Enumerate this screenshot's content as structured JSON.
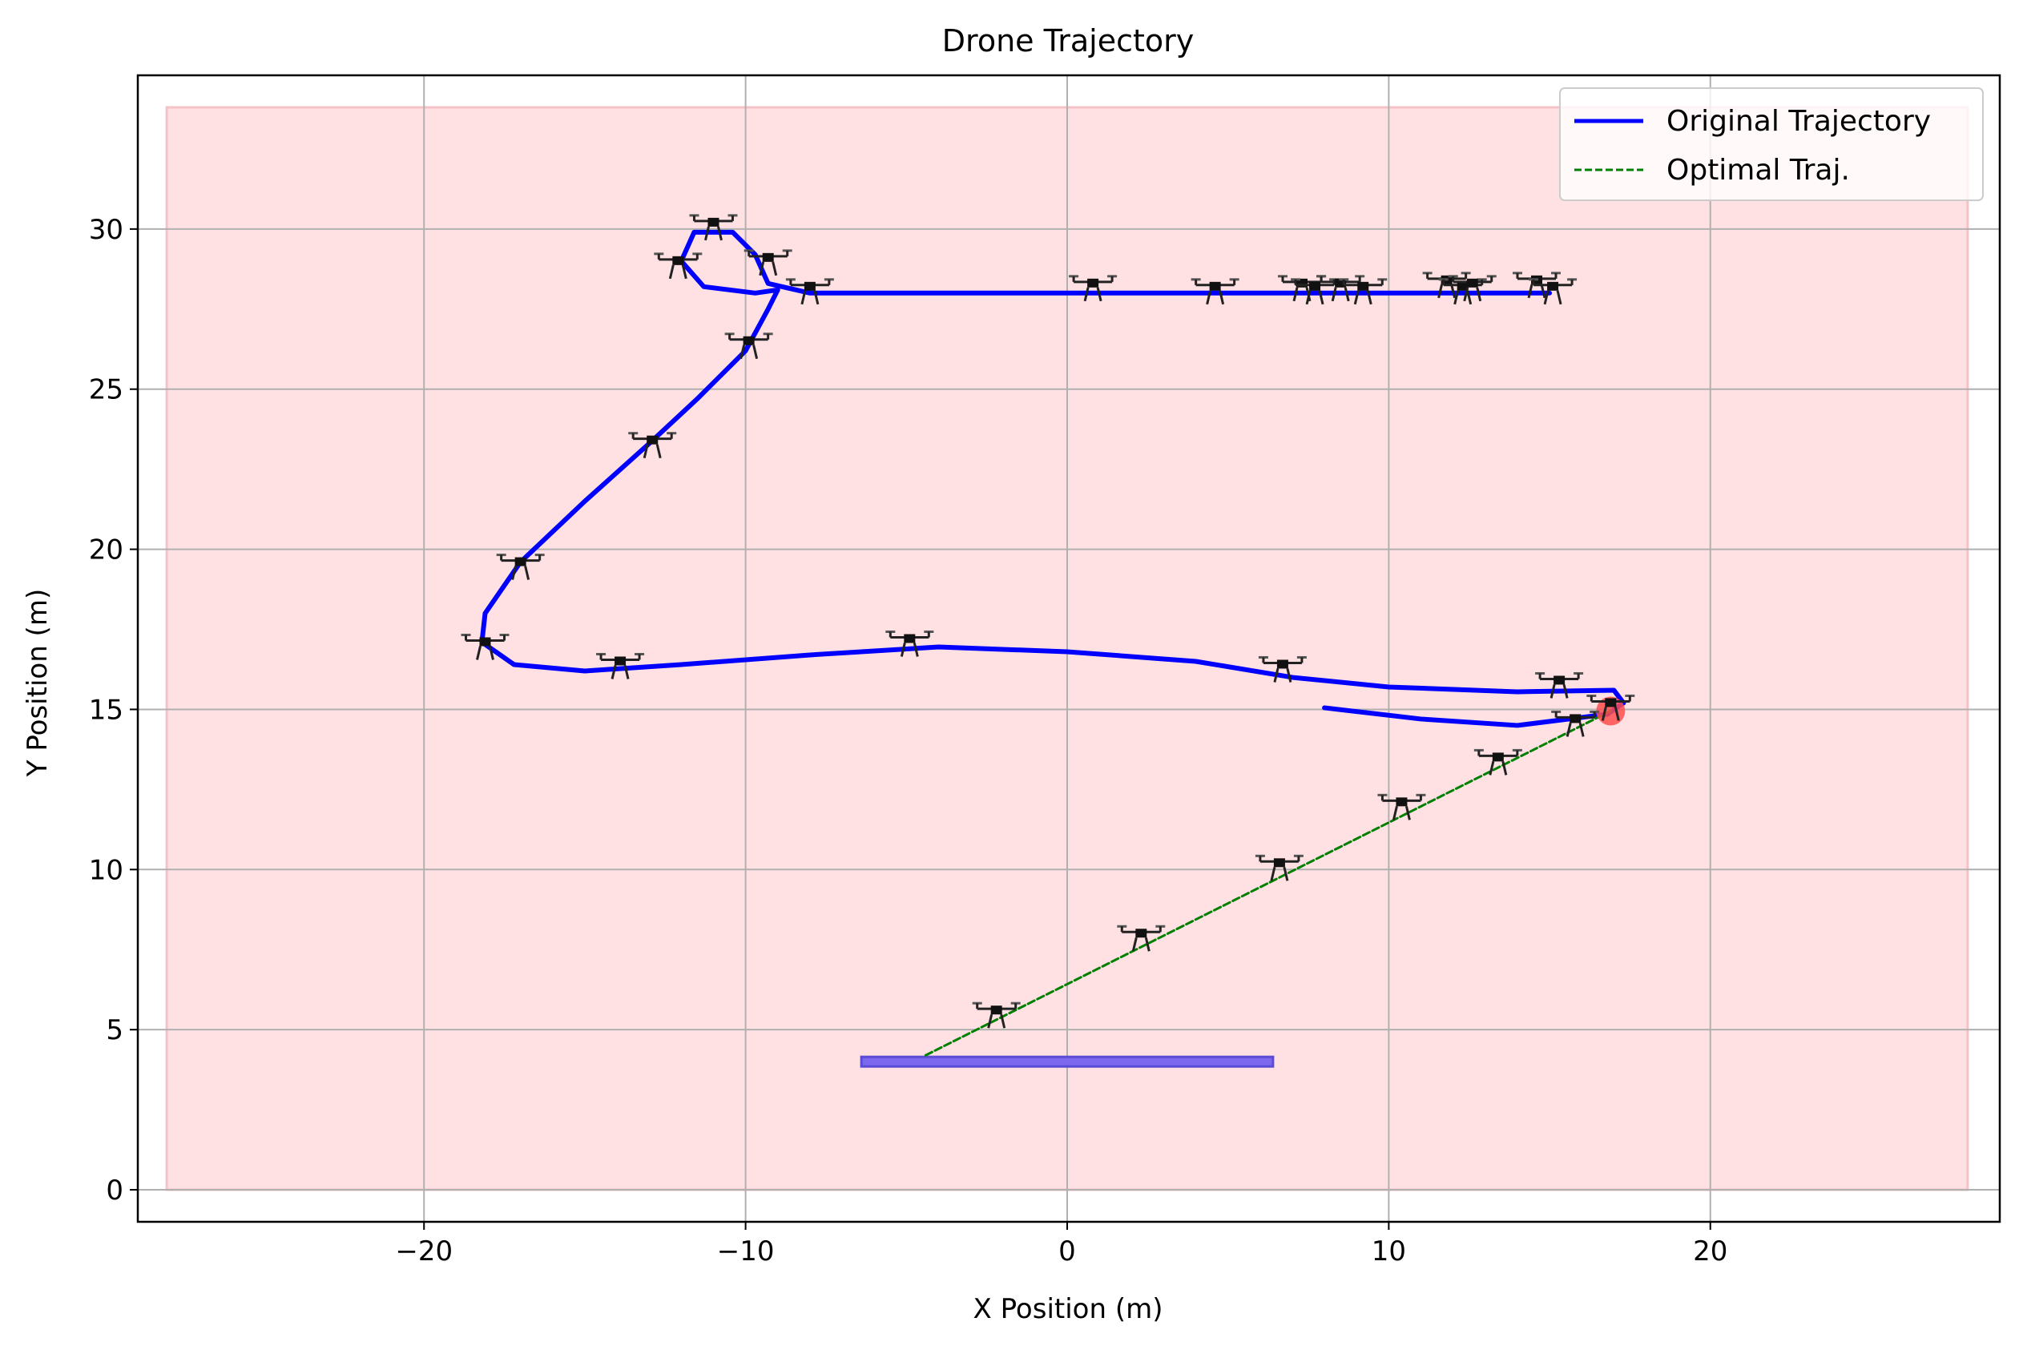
{
  "chart_data": {
    "type": "line",
    "title": "Drone Trajectory",
    "xlabel": "X Position (m)",
    "ylabel": "Y Position (m)",
    "xlim": [
      -28.9,
      29.0
    ],
    "ylim": [
      -1.0,
      34.8
    ],
    "xticks": [
      -20,
      -10,
      0,
      10,
      20
    ],
    "yticks": [
      0,
      5,
      10,
      15,
      20,
      25,
      30
    ],
    "xtick_labels": [
      "−20",
      "−10",
      "0",
      "10",
      "20"
    ],
    "ytick_labels": [
      "0",
      "5",
      "10",
      "15",
      "20",
      "25",
      "30"
    ],
    "grid": true,
    "legend_position": "top-right",
    "region": {
      "x": [
        -28,
        28
      ],
      "y": [
        0,
        33.8
      ],
      "color": "#ffe1e4"
    },
    "landing_pad": {
      "x": [
        -6.4,
        6.4
      ],
      "y": 4.0,
      "color": "#7b68ee"
    },
    "target": {
      "x": 16.9,
      "y": 14.95,
      "color": "#ff4d4d"
    },
    "series": [
      {
        "name": "Original Trajectory",
        "style": "solid",
        "color": "#0000ff",
        "points": [
          [
            15,
            28
          ],
          [
            8,
            28
          ],
          [
            0,
            28
          ],
          [
            -8,
            28
          ],
          [
            -9.3,
            28.3
          ],
          [
            -9.7,
            29.2
          ],
          [
            -10.4,
            29.9
          ],
          [
            -11.6,
            29.9
          ],
          [
            -12,
            29
          ],
          [
            -11.3,
            28.2
          ],
          [
            -9.7,
            28
          ],
          [
            -9,
            28.1
          ],
          [
            -9.3,
            27.5
          ],
          [
            -10,
            26.2
          ],
          [
            -11.5,
            24.7
          ],
          [
            -13,
            23.3
          ],
          [
            -15,
            21.5
          ],
          [
            -17,
            19.6
          ],
          [
            -18.1,
            18
          ],
          [
            -18.2,
            17.1
          ],
          [
            -17.2,
            16.4
          ],
          [
            -15,
            16.2
          ],
          [
            -12,
            16.4
          ],
          [
            -8,
            16.7
          ],
          [
            -4,
            16.95
          ],
          [
            0,
            16.8
          ],
          [
            4,
            16.5
          ],
          [
            7,
            16.0
          ],
          [
            10,
            15.7
          ],
          [
            14,
            15.55
          ],
          [
            17,
            15.6
          ],
          [
            17.3,
            15.2
          ],
          [
            16.8,
            14.85
          ],
          [
            14,
            14.5
          ],
          [
            11,
            14.7
          ],
          [
            8,
            15.05
          ]
        ]
      },
      {
        "name": "Optimal Traj.",
        "style": "dashed",
        "color": "#008000",
        "points": [
          [
            -4.4,
            4.2
          ],
          [
            16.9,
            14.95
          ]
        ]
      }
    ],
    "drone_markers": [
      [
        -11,
        30.0
      ],
      [
        -12.1,
        28.8
      ],
      [
        -9.3,
        28.9
      ],
      [
        -8,
        28.0
      ],
      [
        -9.9,
        26.3
      ],
      [
        -12.9,
        23.2
      ],
      [
        -17,
        19.4
      ],
      [
        -18.1,
        16.9
      ],
      [
        -13.9,
        16.3
      ],
      [
        -4.9,
        17.0
      ],
      [
        0.8,
        28.1
      ],
      [
        4.6,
        28.0
      ],
      [
        7.3,
        28.1
      ],
      [
        7.7,
        28.0
      ],
      [
        8.5,
        28.1
      ],
      [
        9.2,
        28.0
      ],
      [
        11.8,
        28.2
      ],
      [
        12.3,
        28.0
      ],
      [
        12.6,
        28.1
      ],
      [
        14.6,
        28.2
      ],
      [
        15.1,
        28.0
      ],
      [
        6.7,
        16.2
      ],
      [
        15.3,
        15.7
      ],
      [
        16.9,
        15.0
      ],
      [
        15.8,
        14.5
      ],
      [
        13.4,
        13.3
      ],
      [
        10.4,
        11.9
      ],
      [
        6.6,
        10.0
      ],
      [
        2.3,
        7.8
      ],
      [
        -2.2,
        5.4
      ]
    ]
  }
}
